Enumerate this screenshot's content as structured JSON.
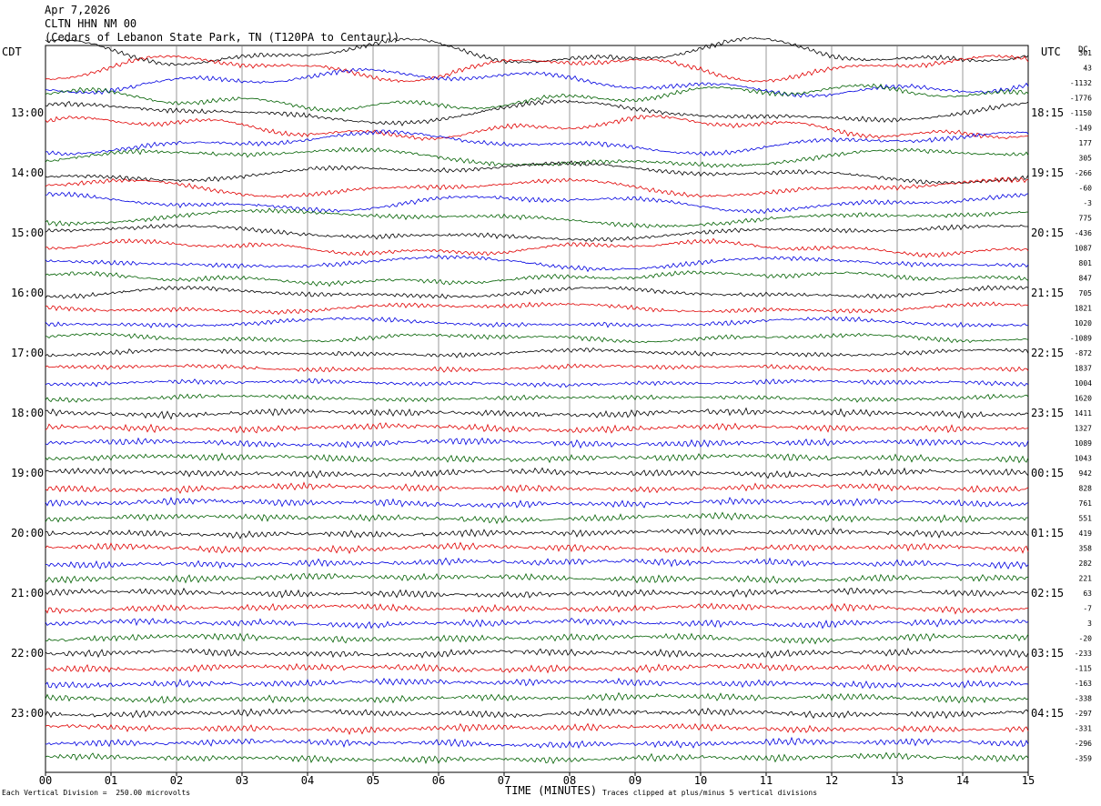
{
  "header": {
    "date": "Apr 7,2026",
    "station": "CLTN HHN NM 00",
    "location": "(Cedars of Lebanon State Park, TN (T120PA to Centaur))"
  },
  "left_timezone": "CDT",
  "right_timezone": "UTC",
  "dc_label": "DC",
  "footer": {
    "division": "Each Vertical Division =  250.00 microvolts",
    "clip": "Traces clipped at plus/minus 5 vertical divisions"
  },
  "colors": {
    "trace_cycle": [
      "#000000",
      "#e00000",
      "#0000e0",
      "#006000"
    ],
    "grid": "#808080"
  },
  "chart_data": {
    "type": "line",
    "title": "CLTN HHN NM 00",
    "xlabel": "TIME (MINUTES)",
    "ylabel": "",
    "xlim": [
      0,
      15
    ],
    "x_ticks": [
      "00",
      "01",
      "02",
      "03",
      "04",
      "05",
      "06",
      "07",
      "08",
      "09",
      "10",
      "11",
      "12",
      "13",
      "14",
      "15"
    ],
    "left_hour_labels": [
      "13:00",
      "14:00",
      "15:00",
      "16:00",
      "17:00",
      "18:00",
      "19:00",
      "20:00",
      "21:00",
      "22:00",
      "23:00"
    ],
    "right_hour_labels": [
      "18:15",
      "19:15",
      "20:15",
      "21:15",
      "22:15",
      "23:15",
      "00:15",
      "01:15",
      "02:15",
      "03:15",
      "04:15"
    ],
    "dc_offsets": [
      301,
      43,
      -1132,
      -1776,
      -1150,
      -149,
      177,
      305,
      -266,
      -60,
      -3,
      775,
      -436,
      1087,
      801,
      847,
      705,
      1821,
      1020,
      -1089,
      -872,
      1837,
      1004,
      1620,
      1411,
      1327,
      1089,
      1043,
      942,
      828,
      761,
      551,
      419,
      358,
      282,
      221,
      63,
      -7,
      3,
      -20,
      -233,
      -115,
      -163,
      -338,
      -297,
      -331,
      -296,
      -359
    ],
    "trace_count": 48,
    "first_trace_start": "12:15 CDT",
    "minutes_per_trace": 15
  }
}
